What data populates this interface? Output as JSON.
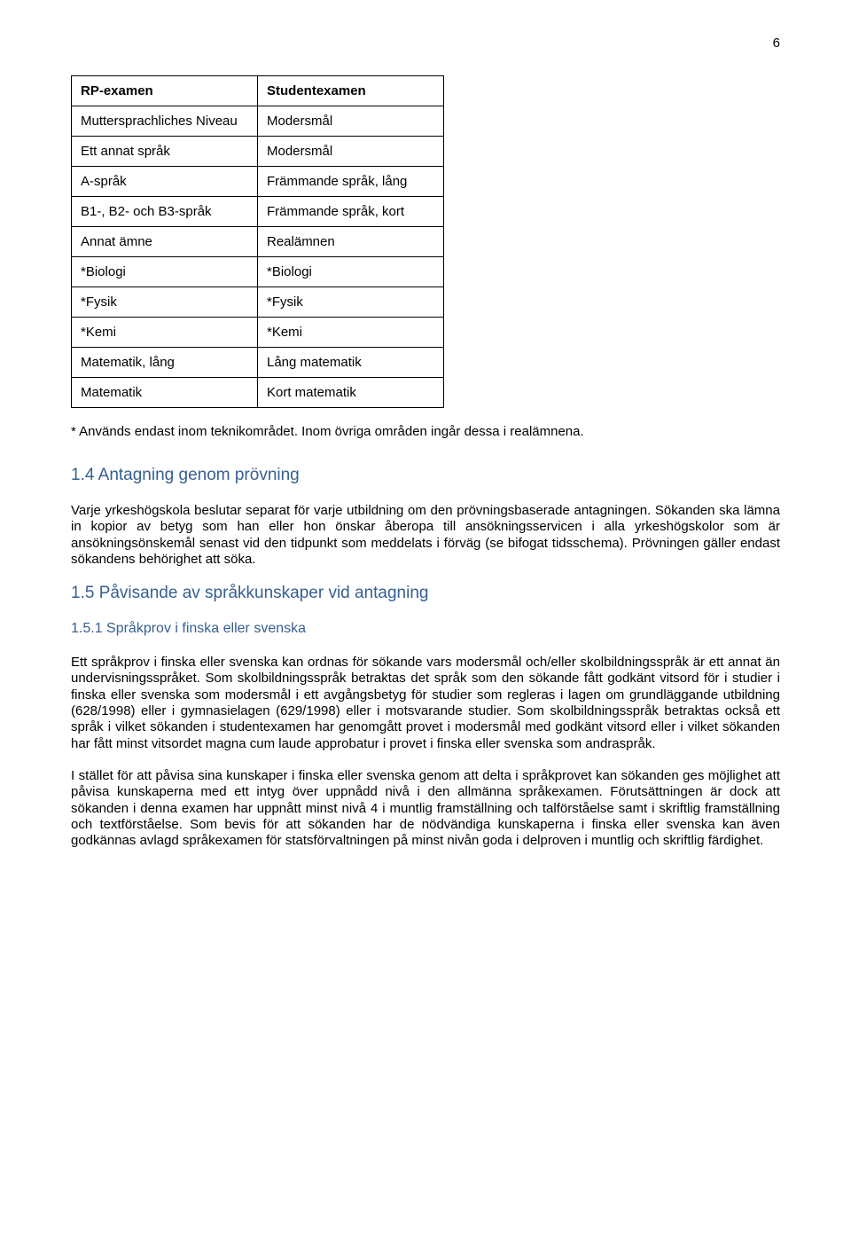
{
  "page_number": "6",
  "table": {
    "rows": [
      {
        "left": "RP-examen",
        "right": "Studentexamen",
        "header": true
      },
      {
        "left": "Muttersprachliches Niveau",
        "right": "Modersmål"
      },
      {
        "left": "Ett annat språk",
        "right": "Modersmål"
      },
      {
        "left": "A-språk",
        "right": "Främmande språk, lång"
      },
      {
        "left": "B1-, B2- och B3-språk",
        "right": "Främmande språk, kort"
      },
      {
        "left": "Annat ämne",
        "right": "Realämnen"
      },
      {
        "left": "*Biologi",
        "right": "*Biologi"
      },
      {
        "left": "*Fysik",
        "right": "*Fysik"
      },
      {
        "left": "*Kemi",
        "right": "*Kemi"
      },
      {
        "left": "Matematik, lång",
        "right": "Lång matematik"
      },
      {
        "left": "Matematik",
        "right": "Kort matematik"
      }
    ]
  },
  "footnote": "* Används endast inom teknikområdet. Inom övriga områden ingår dessa i realämnena.",
  "section_1_4": {
    "heading": "1.4 Antagning genom prövning",
    "paragraph": "Varje yrkeshögskola beslutar separat för varje utbildning om den prövningsbaserade antagningen. Sökanden ska lämna in kopior av betyg som han eller hon önskar åberopa till ansökningsservicen i alla yrkeshögskolor som är ansökningsönskemål senast vid den tidpunkt som meddelats i förväg (se bifogat tidsschema). Prövningen gäller endast sökandens behörighet att söka."
  },
  "section_1_5": {
    "heading": "1.5 Påvisande av språkkunskaper vid antagning",
    "subsection": {
      "heading": "1.5.1 Språkprov i finska eller svenska",
      "paragraphs": [
        "Ett språkprov i finska eller svenska kan ordnas för sökande vars modersmål och/eller skolbildningsspråk är ett annat än undervisningsspråket. Som skolbildningsspråk betraktas det språk som den sökande fått godkänt vitsord för i studier i finska eller svenska som modersmål i ett avgångsbetyg för studier som regleras i lagen om grundläggande utbildning (628/1998) eller i gymnasielagen (629/1998) eller i motsvarande studier. Som skolbildningsspråk betraktas också ett språk i vilket sökanden i studentexamen har genomgått provet i modersmål med godkänt vitsord eller i vilket sökanden har fått minst vitsordet magna cum laude approbatur i provet i finska eller svenska som andraspråk.",
        "I stället för att påvisa sina kunskaper i finska eller svenska genom att delta i språkprovet kan sökanden ges möjlighet att påvisa kunskaperna  med ett intyg över uppnådd nivå i den allmänna språkexamen. Förutsättningen är dock att sökanden i denna examen har uppnått minst nivå 4 i muntlig framställning och talförståelse samt i skriftlig framställning och textförståelse.  Som bevis för att sökanden har de nödvändiga kunskaperna i finska eller svenska kan även godkännas avlagd språkexamen för statsförvaltningen på minst nivån goda i delproven i muntlig och skriftlig färdighet."
      ]
    }
  }
}
